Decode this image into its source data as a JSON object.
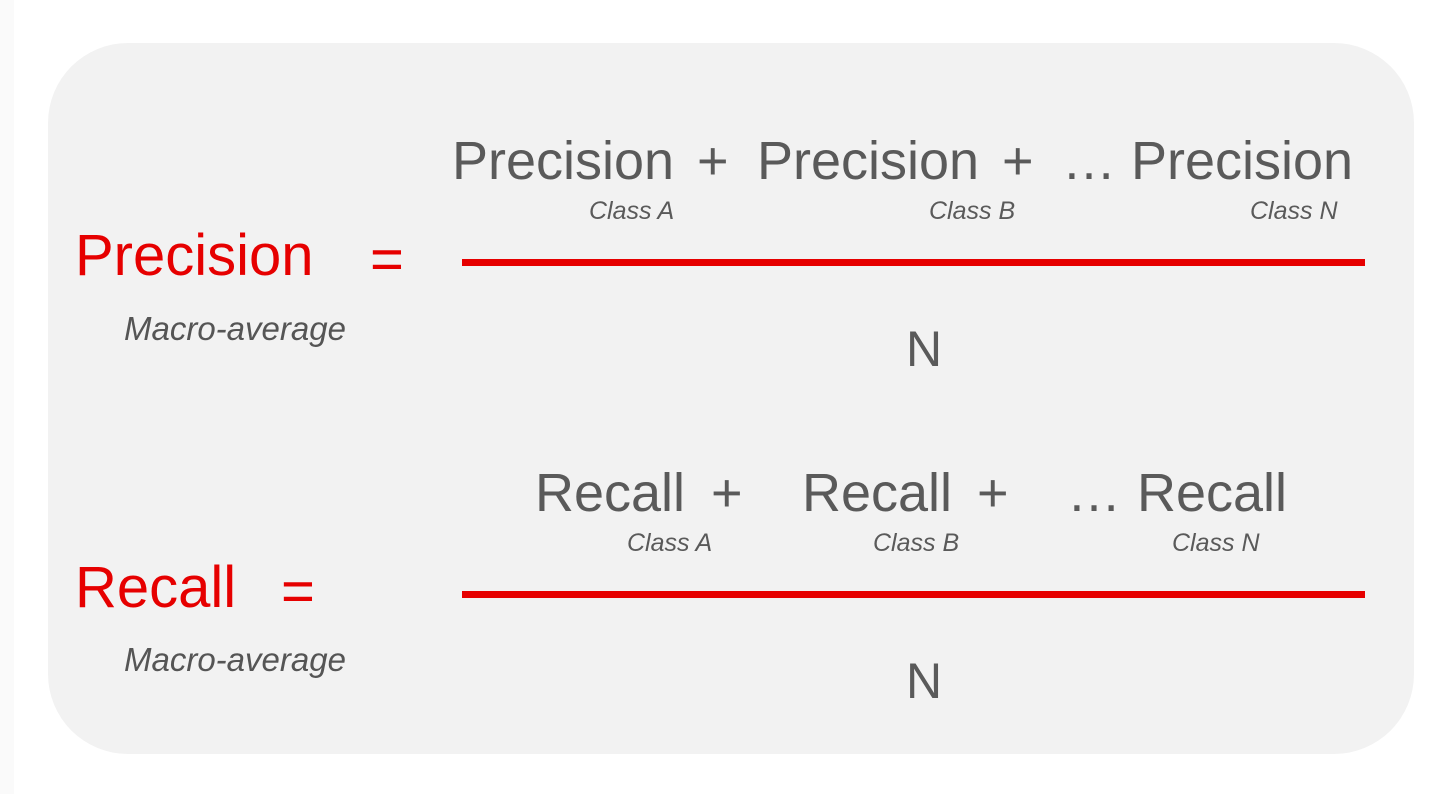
{
  "precision_formula": {
    "lhs_label": "Precision",
    "equals": "=",
    "lhs_sub": "Macro-average",
    "numerator": {
      "term1": "Precision",
      "plus1": "+",
      "term2": "Precision",
      "plus2": "+",
      "ellipsis": "…",
      "term3": "Precision",
      "sub1": "Class A",
      "sub2": "Class B",
      "sub3": "Class N"
    },
    "denominator": "N"
  },
  "recall_formula": {
    "lhs_label": "Recall",
    "equals": "=",
    "lhs_sub": "Macro-average",
    "numerator": {
      "term1": "Recall",
      "plus1": "+",
      "term2": "Recall",
      "plus2": "+",
      "ellipsis": "…",
      "term3": "Recall",
      "sub1": "Class A",
      "sub2": "Class B",
      "sub3": "Class N"
    },
    "denominator": "N"
  },
  "colors": {
    "accent": "#e60000",
    "text": "#5a5a5a",
    "card_background": "#f2f2f2"
  }
}
